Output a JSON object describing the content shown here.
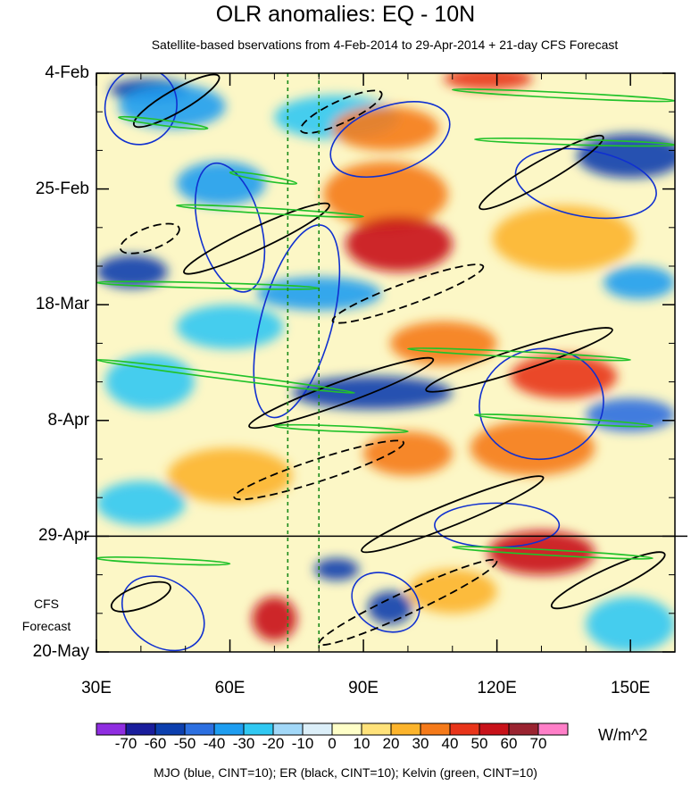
{
  "chart_data": {
    "type": "heatmap",
    "title": "OLR anomalies: EQ - 10N",
    "subtitle": "Satellite-based bservations from 4-Feb-2014 to 29-Apr-2014 + 21-day CFS Forecast",
    "x_ticks": [
      {
        "value": 30,
        "label": "30E"
      },
      {
        "value": 60,
        "label": "60E"
      },
      {
        "value": 90,
        "label": "90E"
      },
      {
        "value": 120,
        "label": "120E"
      },
      {
        "value": 150,
        "label": "150E"
      }
    ],
    "xlim": [
      30,
      160
    ],
    "y_ticks": [
      {
        "day": 0,
        "label": "4-Feb"
      },
      {
        "day": 21,
        "label": "25-Feb"
      },
      {
        "day": 42,
        "label": "18-Mar"
      },
      {
        "day": 63,
        "label": "8-Apr"
      },
      {
        "day": 84,
        "label": "29-Apr"
      },
      {
        "day": 105,
        "label": "20-May"
      }
    ],
    "ylim_days": [
      0,
      105
    ],
    "forecast_start_day": 84,
    "forecast_label_line1": "CFS",
    "forecast_label_line2": "Forecast",
    "reference_lines_lon": [
      73,
      80
    ],
    "colorbar": {
      "units": "W/m^2",
      "levels": [
        -70,
        -60,
        -50,
        -40,
        -30,
        -20,
        -10,
        0,
        10,
        20,
        30,
        40,
        50,
        60,
        70
      ],
      "colors": [
        "#8f2de0",
        "#1a1d9c",
        "#0c3fae",
        "#2c6fe0",
        "#1e9df0",
        "#30c8f2",
        "#a2d8f8",
        "#dceff9",
        "#ffffc8",
        "#ffe27a",
        "#fcb42c",
        "#f57a1a",
        "#e8341a",
        "#c8121a",
        "#9a2330",
        "#ff7fc8"
      ]
    },
    "anomaly_blobs": [
      {
        "lon": 42,
        "day": 3,
        "rx": 9,
        "ry": 2,
        "value": -55
      },
      {
        "lon": 47,
        "day": 6,
        "rx": 12,
        "ry": 4,
        "value": -35
      },
      {
        "lon": 84,
        "day": 8,
        "rx": 14,
        "ry": 4,
        "value": -25
      },
      {
        "lon": 95,
        "day": 10,
        "rx": 12,
        "ry": 4,
        "value": 30
      },
      {
        "lon": 118,
        "day": 1,
        "rx": 10,
        "ry": 2,
        "value": 45
      },
      {
        "lon": 150,
        "day": 15,
        "rx": 12,
        "ry": 4,
        "value": -55
      },
      {
        "lon": 58,
        "day": 20,
        "rx": 10,
        "ry": 4,
        "value": -35
      },
      {
        "lon": 95,
        "day": 22,
        "rx": 14,
        "ry": 6,
        "value": 30
      },
      {
        "lon": 98,
        "day": 31,
        "rx": 12,
        "ry": 5,
        "value": 50
      },
      {
        "lon": 135,
        "day": 30,
        "rx": 16,
        "ry": 6,
        "value": 25
      },
      {
        "lon": 38,
        "day": 36,
        "rx": 8,
        "ry": 3,
        "value": -55
      },
      {
        "lon": 80,
        "day": 40,
        "rx": 14,
        "ry": 3,
        "value": -40
      },
      {
        "lon": 152,
        "day": 38,
        "rx": 8,
        "ry": 3,
        "value": -40
      },
      {
        "lon": 60,
        "day": 46,
        "rx": 12,
        "ry": 4,
        "value": -25
      },
      {
        "lon": 108,
        "day": 49,
        "rx": 12,
        "ry": 4,
        "value": 35
      },
      {
        "lon": 135,
        "day": 55,
        "rx": 12,
        "ry": 4,
        "value": 45
      },
      {
        "lon": 92,
        "day": 58,
        "rx": 18,
        "ry": 3,
        "value": -55
      },
      {
        "lon": 42,
        "day": 56,
        "rx": 10,
        "ry": 5,
        "value": -30
      },
      {
        "lon": 150,
        "day": 62,
        "rx": 10,
        "ry": 3,
        "value": -45
      },
      {
        "lon": 60,
        "day": 73,
        "rx": 14,
        "ry": 5,
        "value": 20
      },
      {
        "lon": 100,
        "day": 69,
        "rx": 10,
        "ry": 4,
        "value": 35
      },
      {
        "lon": 128,
        "day": 68,
        "rx": 14,
        "ry": 5,
        "value": 30
      },
      {
        "lon": 40,
        "day": 78,
        "rx": 10,
        "ry": 4,
        "value": -25
      },
      {
        "lon": 84,
        "day": 90,
        "rx": 5,
        "ry": 2,
        "value": -60
      },
      {
        "lon": 130,
        "day": 87,
        "rx": 12,
        "ry": 4,
        "value": 50
      },
      {
        "lon": 70,
        "day": 99,
        "rx": 5,
        "ry": 4,
        "value": 50
      },
      {
        "lon": 96,
        "day": 97,
        "rx": 5,
        "ry": 3,
        "value": -60
      },
      {
        "lon": 150,
        "day": 100,
        "rx": 10,
        "ry": 5,
        "value": -30
      },
      {
        "lon": 110,
        "day": 94,
        "rx": 10,
        "ry": 4,
        "value": 20
      }
    ],
    "mjo_contours": [
      {
        "lon": 40,
        "day": 6,
        "rx": 8,
        "ry": 7,
        "angle": 20
      },
      {
        "lon": 60,
        "day": 28,
        "rx": 7,
        "ry": 12,
        "angle": -15
      },
      {
        "lon": 96,
        "day": 12,
        "rx": 14,
        "ry": 6,
        "angle": -20
      },
      {
        "lon": 140,
        "day": 20,
        "rx": 16,
        "ry": 6,
        "angle": 10
      },
      {
        "lon": 75,
        "day": 45,
        "rx": 8,
        "ry": 18,
        "angle": 15
      },
      {
        "lon": 130,
        "day": 60,
        "rx": 14,
        "ry": 10,
        "angle": -10
      },
      {
        "lon": 45,
        "day": 98,
        "rx": 10,
        "ry": 6,
        "angle": 35
      },
      {
        "lon": 95,
        "day": 96,
        "rx": 8,
        "ry": 5,
        "angle": 30
      },
      {
        "lon": 120,
        "day": 82,
        "rx": 14,
        "ry": 4,
        "angle": 0
      }
    ],
    "er_contours": [
      {
        "lon": 48,
        "day": 5,
        "rx": 11,
        "ry": 2,
        "angle": -30,
        "dashed": false
      },
      {
        "lon": 85,
        "day": 7,
        "rx": 10,
        "ry": 2,
        "angle": -25,
        "dashed": true
      },
      {
        "lon": 130,
        "day": 18,
        "rx": 16,
        "ry": 2,
        "angle": -30,
        "dashed": false
      },
      {
        "lon": 66,
        "day": 30,
        "rx": 18,
        "ry": 2,
        "angle": -25,
        "dashed": false
      },
      {
        "lon": 100,
        "day": 40,
        "rx": 18,
        "ry": 2,
        "angle": -20,
        "dashed": true
      },
      {
        "lon": 85,
        "day": 58,
        "rx": 22,
        "ry": 2,
        "angle": -20,
        "dashed": false
      },
      {
        "lon": 125,
        "day": 52,
        "rx": 22,
        "ry": 2,
        "angle": -18,
        "dashed": false
      },
      {
        "lon": 80,
        "day": 72,
        "rx": 20,
        "ry": 2,
        "angle": -18,
        "dashed": true
      },
      {
        "lon": 110,
        "day": 80,
        "rx": 22,
        "ry": 2,
        "angle": -22,
        "dashed": false
      },
      {
        "lon": 100,
        "day": 96,
        "rx": 22,
        "ry": 2,
        "angle": -25,
        "dashed": true
      },
      {
        "lon": 145,
        "day": 92,
        "rx": 14,
        "ry": 2,
        "angle": -25,
        "dashed": false
      },
      {
        "lon": 40,
        "day": 95,
        "rx": 7,
        "ry": 2,
        "angle": -20,
        "dashed": false
      },
      {
        "lon": 42,
        "day": 30,
        "rx": 7,
        "ry": 2,
        "angle": -20,
        "dashed": true
      }
    ],
    "kelvin_contours": [
      {
        "lon1": 35,
        "day1": 8,
        "lon2": 55,
        "day2": 10
      },
      {
        "lon1": 110,
        "day1": 3,
        "lon2": 160,
        "day2": 5
      },
      {
        "lon1": 60,
        "day1": 18,
        "lon2": 75,
        "day2": 20
      },
      {
        "lon1": 115,
        "day1": 12,
        "lon2": 160,
        "day2": 13
      },
      {
        "lon1": 48,
        "day1": 24,
        "lon2": 90,
        "day2": 26
      },
      {
        "lon1": 30,
        "day1": 38,
        "lon2": 80,
        "day2": 39
      },
      {
        "lon1": 30,
        "day1": 52,
        "lon2": 88,
        "day2": 58
      },
      {
        "lon1": 100,
        "day1": 50,
        "lon2": 150,
        "day2": 52
      },
      {
        "lon1": 70,
        "day1": 64,
        "lon2": 100,
        "day2": 65
      },
      {
        "lon1": 115,
        "day1": 62,
        "lon2": 155,
        "day2": 64
      },
      {
        "lon1": 30,
        "day1": 88,
        "lon2": 60,
        "day2": 89
      },
      {
        "lon1": 110,
        "day1": 86,
        "lon2": 155,
        "day2": 88
      }
    ],
    "footer": "MJO (blue, CINT=10); ER (black, CINT=10); Kelvin (green, CINT=10)"
  }
}
